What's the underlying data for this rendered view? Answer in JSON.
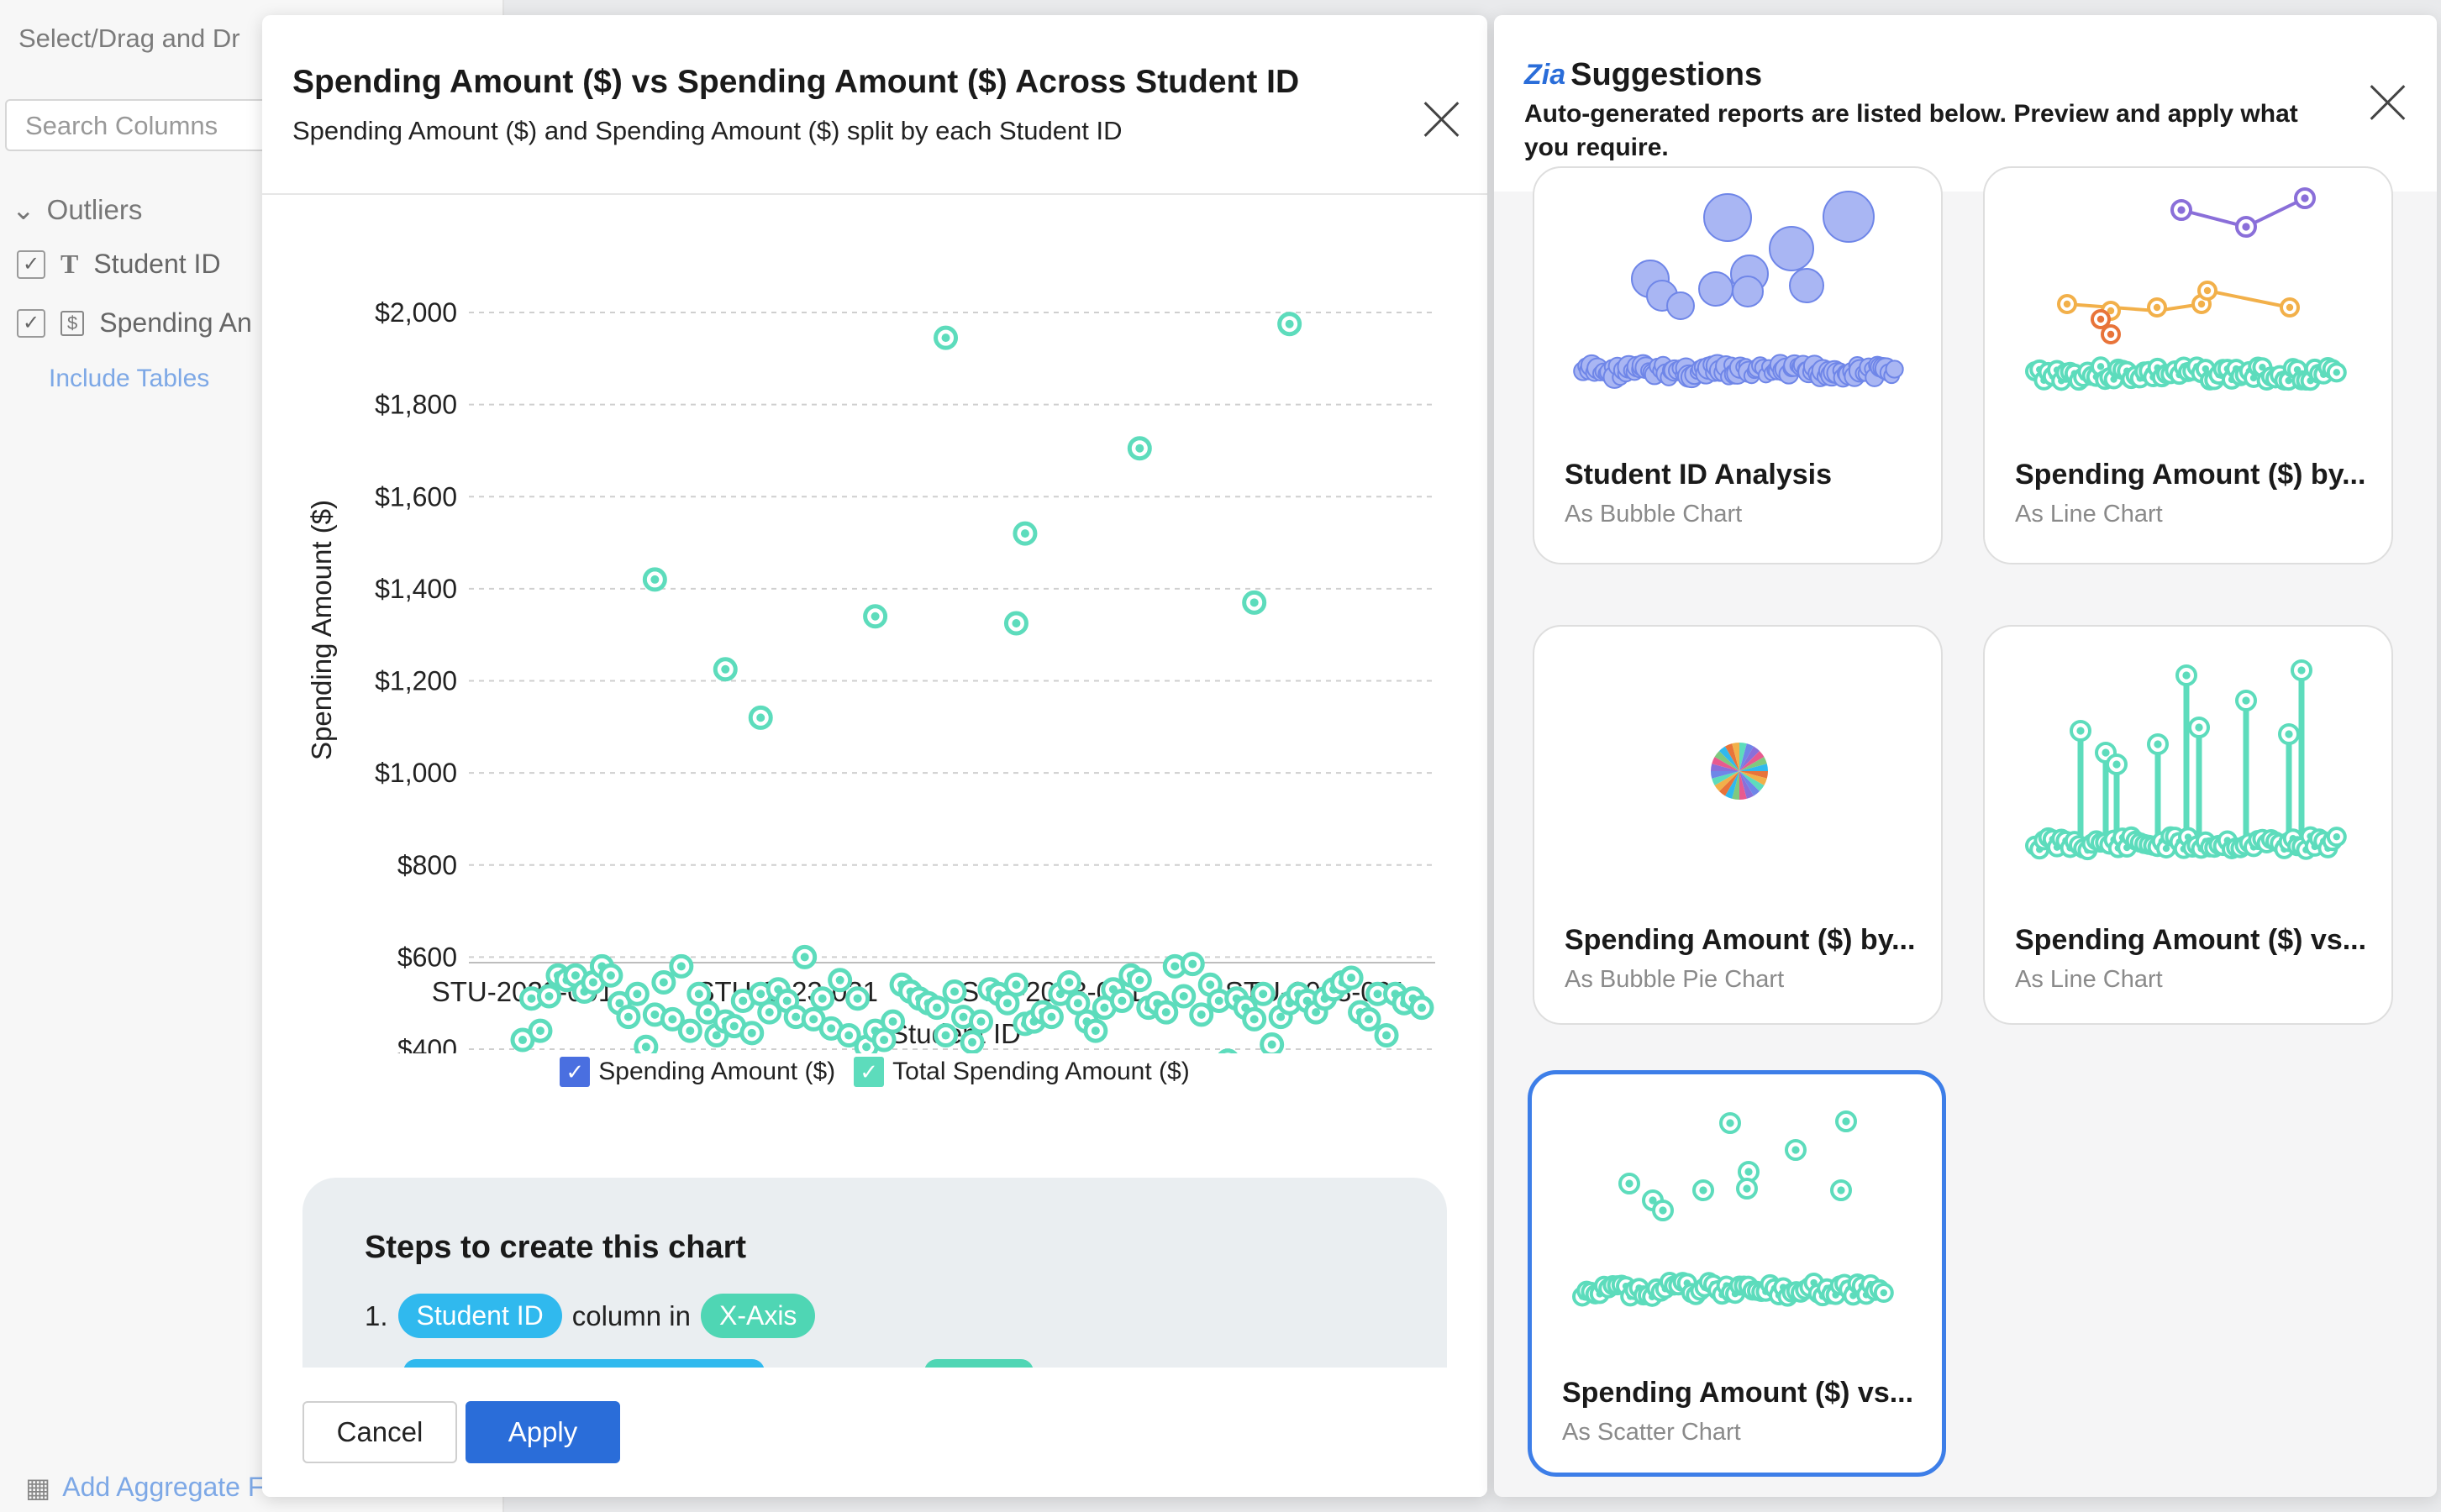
{
  "background": {
    "title": "Select/Drag and Dr",
    "search_placeholder": "Search Columns",
    "group_label": "Outliers",
    "columns": [
      {
        "type_icon": "T",
        "label": "Student ID"
      },
      {
        "type_icon": "$",
        "label": "Spending An"
      }
    ],
    "include_tables": "Include Tables",
    "add_aggregate": "Add Aggregate Formula"
  },
  "dialog": {
    "title": "Spending Amount ($) vs Spending Amount ($) Across Student ID",
    "subtitle": "Spending Amount ($) and Spending Amount ($) split by each Student ID",
    "legend": [
      {
        "label": "Spending Amount ($)",
        "color": "#4a6fe0"
      },
      {
        "label": "Total Spending Amount ($)",
        "color": "#5ddcbc"
      }
    ],
    "steps_title": "Steps to create this chart",
    "step1": {
      "number": "1.",
      "column": "Student ID",
      "mid": "column in",
      "target": "X-Axis"
    },
    "cancel_label": "Cancel",
    "apply_label": "Apply"
  },
  "chart_data": {
    "type": "scatter",
    "xlabel": "Student ID",
    "ylabel": "Spending Amount ($)",
    "ylim": [
      300,
      2000
    ],
    "yticks": [
      "$400",
      "$600",
      "$800",
      "$1,000",
      "$1,200",
      "$1,400",
      "$1,600",
      "$1,800",
      "$2,000"
    ],
    "xticks": [
      "STU-2023-001",
      "STU-2023-031",
      "STU-2023-061",
      "STU-2023-091"
    ],
    "x_count": 103,
    "grid": true,
    "legend_position": "bottom",
    "marker_color": "#5ddcbc",
    "outliers": [
      {
        "index": 15,
        "value": 1420
      },
      {
        "index": 23,
        "value": 1225
      },
      {
        "index": 27,
        "value": 1120
      },
      {
        "index": 40,
        "value": 1340
      },
      {
        "index": 48,
        "value": 1945
      },
      {
        "index": 56,
        "value": 1325
      },
      {
        "index": 57,
        "value": 1520
      },
      {
        "index": 70,
        "value": 1705
      },
      {
        "index": 83,
        "value": 1370
      },
      {
        "index": 87,
        "value": 1975
      }
    ],
    "baseline": [
      420,
      510,
      440,
      515,
      560,
      550,
      560,
      525,
      545,
      580,
      560,
      500,
      470,
      520,
      405,
      475,
      545,
      465,
      580,
      440,
      520,
      480,
      430,
      460,
      450,
      505,
      435,
      520,
      480,
      530,
      505,
      470,
      600,
      465,
      510,
      445,
      550,
      430,
      510,
      405,
      440,
      420,
      460,
      540,
      525,
      510,
      500,
      490,
      430,
      525,
      470,
      415,
      460,
      530,
      520,
      500,
      540,
      455,
      460,
      480,
      470,
      520,
      545,
      500,
      460,
      440,
      490,
      530,
      505,
      560,
      550,
      490,
      500,
      480,
      580,
      515,
      585,
      475,
      540,
      505,
      375,
      510,
      490,
      465,
      520,
      410,
      470,
      500,
      520,
      505,
      480,
      510,
      530,
      545,
      555,
      480,
      465,
      520,
      430,
      520,
      500,
      510,
      490
    ]
  },
  "suggestions": {
    "title": "Suggestions",
    "logo": "Zia",
    "description": "Auto-generated reports are listed below. Preview and apply what you require.",
    "cards": [
      {
        "name": "Student ID Analysis",
        "type": "As Bubble Chart",
        "thumb": "bubble"
      },
      {
        "name": "Spending Amount ($) by...",
        "type": "As Line Chart",
        "thumb": "line"
      },
      {
        "name": "Spending Amount ($) by...",
        "type": "As Bubble Pie Chart",
        "thumb": "pie"
      },
      {
        "name": "Spending Amount ($) vs...",
        "type": "As Line Chart",
        "thumb": "lollipop"
      },
      {
        "name": "Spending Amount ($) vs...",
        "type": "As Scatter Chart",
        "thumb": "scatter"
      }
    ]
  }
}
